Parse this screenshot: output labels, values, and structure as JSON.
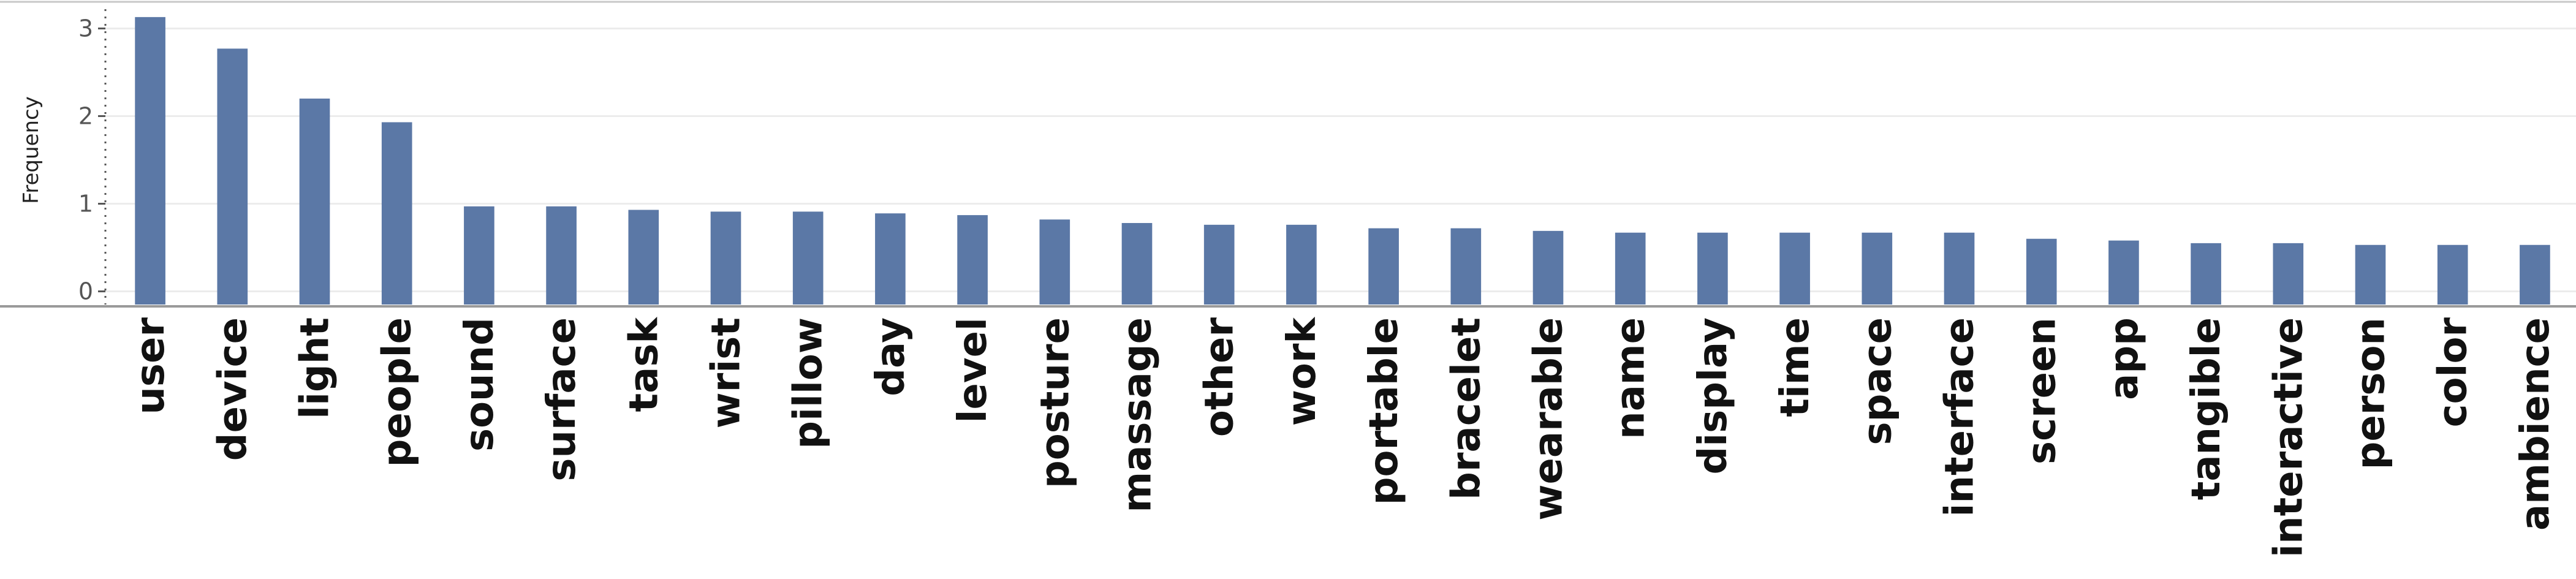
{
  "chart_data": {
    "type": "bar",
    "ylabel": "Frequency",
    "xlabel": "",
    "ylim": [
      -0.15,
      3.15
    ],
    "yticks": [
      0,
      1,
      2,
      3
    ],
    "grid": true,
    "bar_color": "#5b78a6",
    "categories": [
      "user",
      "device",
      "light",
      "people",
      "sound",
      "surface",
      "task",
      "wrist",
      "pillow",
      "day",
      "level",
      "posture",
      "massage",
      "other",
      "work",
      "portable",
      "bracelet",
      "wearable",
      "name",
      "display",
      "time",
      "space",
      "interface",
      "screen",
      "app",
      "tangible",
      "interactive",
      "person",
      "color",
      "ambience"
    ],
    "values": [
      3.13,
      2.77,
      2.2,
      1.93,
      0.97,
      0.97,
      0.93,
      0.91,
      0.91,
      0.89,
      0.87,
      0.82,
      0.78,
      0.76,
      0.76,
      0.72,
      0.72,
      0.69,
      0.67,
      0.67,
      0.67,
      0.67,
      0.67,
      0.6,
      0.58,
      0.55,
      0.55,
      0.53,
      0.53,
      0.53
    ]
  }
}
